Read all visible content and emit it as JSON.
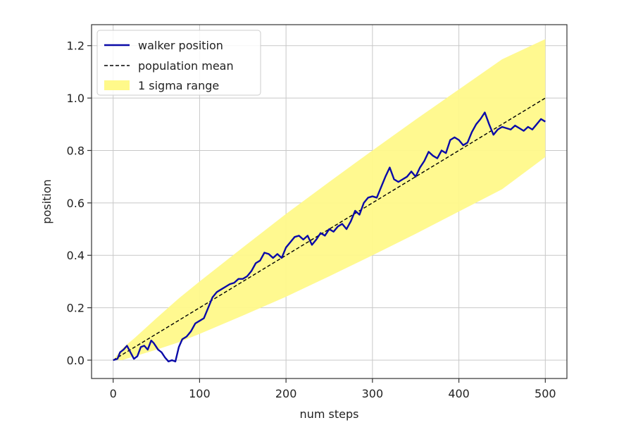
{
  "chart_data": {
    "type": "line",
    "title": "",
    "xlabel": "num steps",
    "ylabel": "position",
    "xlim": [
      -25,
      525
    ],
    "ylim": [
      -0.07,
      1.28
    ],
    "xticks": [
      0,
      100,
      200,
      300,
      400,
      500
    ],
    "yticks": [
      0.0,
      0.2,
      0.4,
      0.6,
      0.8,
      1.0,
      1.2
    ],
    "xtick_labels": [
      "0",
      "100",
      "200",
      "300",
      "400",
      "500"
    ],
    "ytick_labels": [
      "0.0",
      "0.2",
      "0.4",
      "0.6",
      "0.8",
      "1.0",
      "1.2"
    ],
    "grid": true,
    "legend_position": "top-left",
    "legend": {
      "walker": "walker position",
      "mean": "population mean",
      "band": "1 sigma range"
    },
    "colors": {
      "walker": "#0a0aa8",
      "mean": "#000000",
      "band": "#fff98a"
    },
    "population_mean": {
      "x": [
        0,
        500
      ],
      "y": [
        0.0,
        1.0
      ]
    },
    "sigma_band": {
      "x": [
        0,
        10,
        25,
        50,
        75,
        100,
        150,
        200,
        250,
        300,
        350,
        400,
        450,
        500
      ],
      "upper": [
        0.0,
        0.043,
        0.085,
        0.16,
        0.233,
        0.3,
        0.43,
        0.558,
        0.68,
        0.8,
        0.918,
        1.033,
        1.148,
        1.225
      ],
      "lower": [
        0.0,
        0.0,
        0.015,
        0.04,
        0.067,
        0.1,
        0.17,
        0.242,
        0.32,
        0.4,
        0.482,
        0.567,
        0.652,
        0.775
      ]
    },
    "series": [
      {
        "name": "walker position",
        "x": [
          0,
          5,
          8,
          12,
          16,
          20,
          24,
          28,
          32,
          36,
          40,
          44,
          47,
          52,
          56,
          60,
          64,
          68,
          72,
          76,
          80,
          85,
          90,
          95,
          100,
          105,
          110,
          115,
          120,
          125,
          130,
          135,
          140,
          145,
          150,
          155,
          160,
          165,
          170,
          175,
          180,
          185,
          190,
          195,
          200,
          205,
          210,
          215,
          220,
          225,
          230,
          235,
          240,
          245,
          250,
          255,
          260,
          265,
          270,
          275,
          280,
          285,
          290,
          295,
          300,
          305,
          310,
          315,
          320,
          325,
          330,
          335,
          340,
          345,
          350,
          355,
          360,
          365,
          370,
          375,
          380,
          385,
          390,
          395,
          400,
          405,
          410,
          415,
          420,
          425,
          430,
          435,
          440,
          445,
          450,
          455,
          460,
          465,
          470,
          475,
          480,
          485,
          490,
          495,
          500
        ],
        "y": [
          0.0,
          0.005,
          0.03,
          0.04,
          0.055,
          0.03,
          0.005,
          0.015,
          0.05,
          0.055,
          0.04,
          0.075,
          0.065,
          0.04,
          0.03,
          0.01,
          -0.005,
          0.0,
          -0.005,
          0.05,
          0.08,
          0.09,
          0.11,
          0.14,
          0.15,
          0.16,
          0.2,
          0.24,
          0.26,
          0.27,
          0.28,
          0.29,
          0.295,
          0.31,
          0.31,
          0.32,
          0.34,
          0.37,
          0.38,
          0.41,
          0.405,
          0.39,
          0.405,
          0.39,
          0.43,
          0.45,
          0.47,
          0.475,
          0.46,
          0.475,
          0.44,
          0.46,
          0.485,
          0.475,
          0.5,
          0.49,
          0.51,
          0.52,
          0.5,
          0.53,
          0.57,
          0.555,
          0.6,
          0.62,
          0.625,
          0.62,
          0.66,
          0.7,
          0.735,
          0.69,
          0.68,
          0.69,
          0.7,
          0.72,
          0.7,
          0.735,
          0.76,
          0.795,
          0.78,
          0.77,
          0.8,
          0.79,
          0.84,
          0.85,
          0.84,
          0.82,
          0.83,
          0.87,
          0.9,
          0.92,
          0.945,
          0.9,
          0.86,
          0.88,
          0.89,
          0.885,
          0.88,
          0.895,
          0.885,
          0.875,
          0.89,
          0.88,
          0.9,
          0.92,
          0.91
        ]
      }
    ]
  }
}
